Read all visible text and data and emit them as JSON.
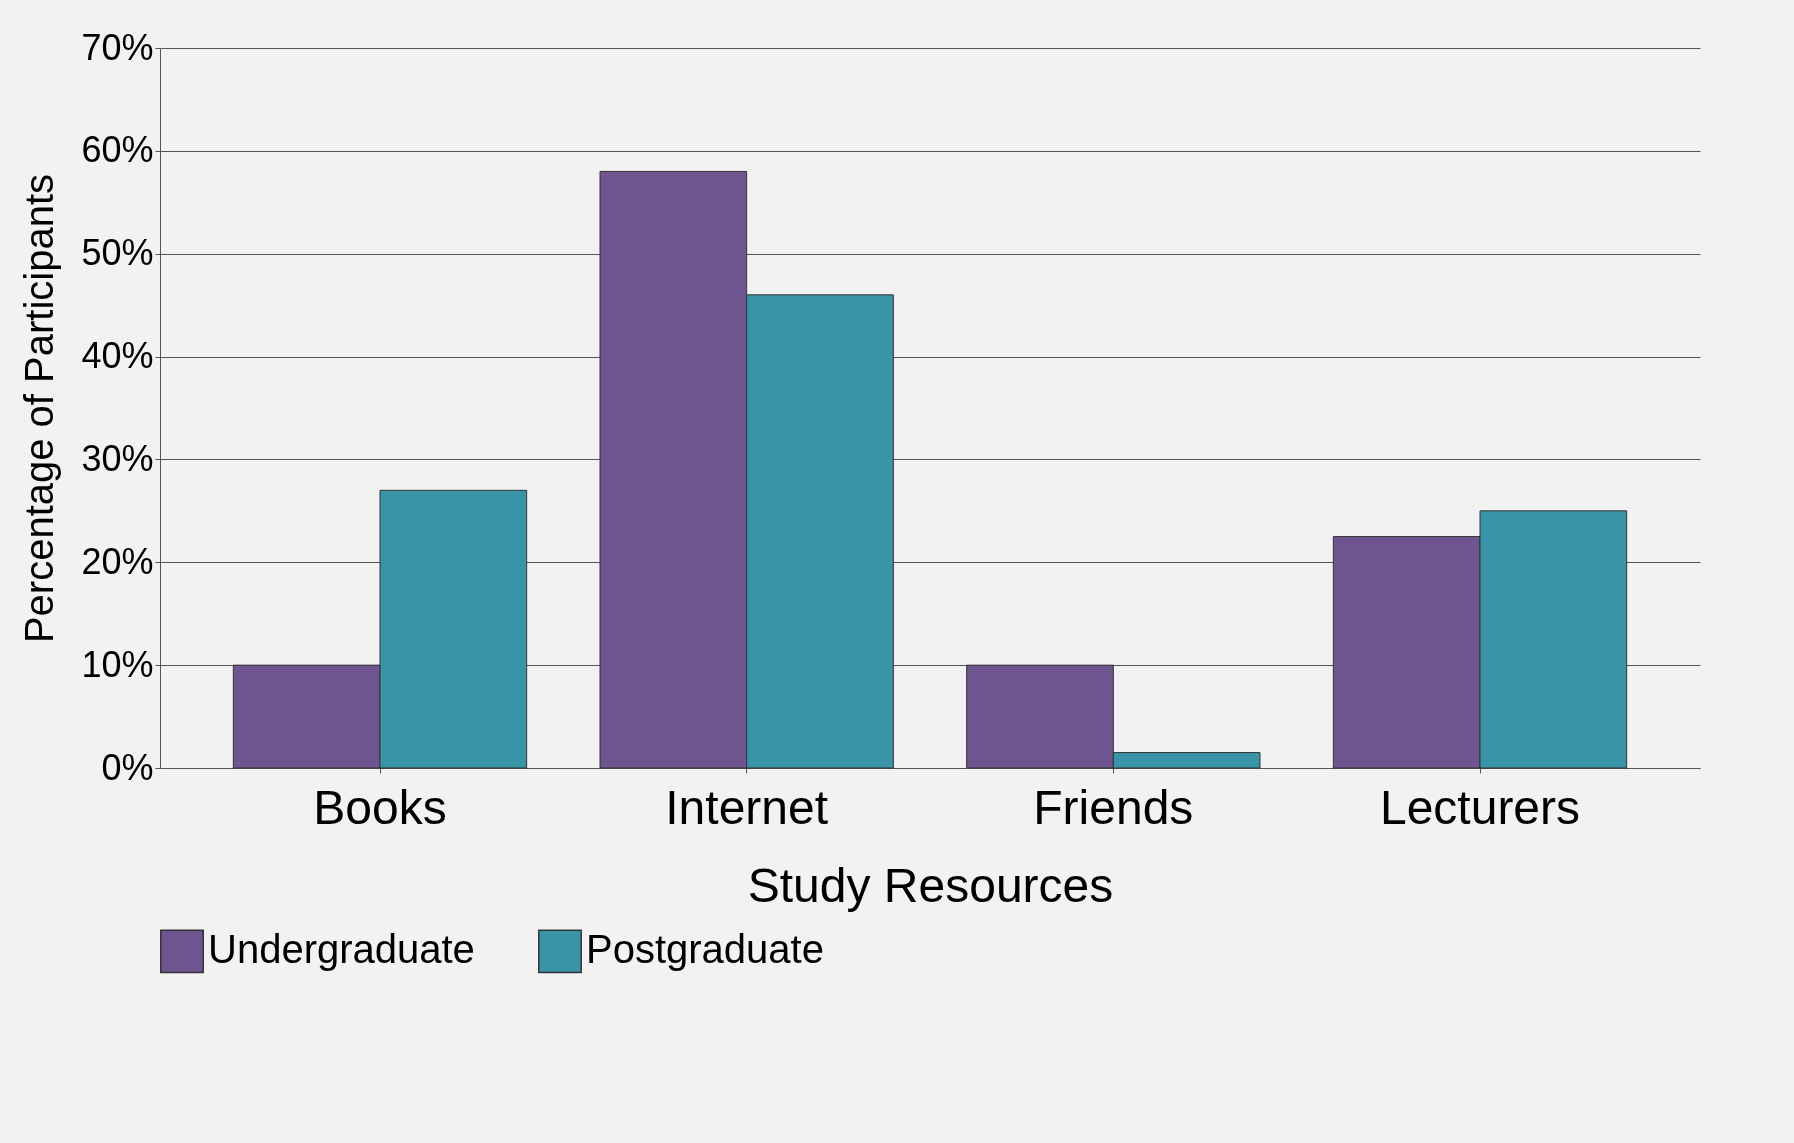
{
  "chart_data": {
    "type": "bar",
    "xlabel": "Study Resources",
    "ylabel": "Percentage of Participants",
    "categories": [
      "Books",
      "Internet",
      "Friends",
      "Lecturers"
    ],
    "series": [
      {
        "name": "Undergraduate",
        "color": "#6e5590",
        "values": [
          10,
          58,
          10,
          22.5
        ]
      },
      {
        "name": "Postgraduate",
        "color": "#3a94a8",
        "values": [
          27,
          46,
          1.5,
          25
        ]
      }
    ],
    "ylim": [
      0,
      70
    ],
    "yticks": [
      {
        "value": 0,
        "label": "0%"
      },
      {
        "value": 10,
        "label": "10%"
      },
      {
        "value": 20,
        "label": "20%"
      },
      {
        "value": 30,
        "label": "30%"
      },
      {
        "value": 40,
        "label": "40%"
      },
      {
        "value": 50,
        "label": "50%"
      },
      {
        "value": 60,
        "label": "60%"
      },
      {
        "value": 70,
        "label": "70%"
      }
    ],
    "grid": "y",
    "legend": "bottom"
  }
}
